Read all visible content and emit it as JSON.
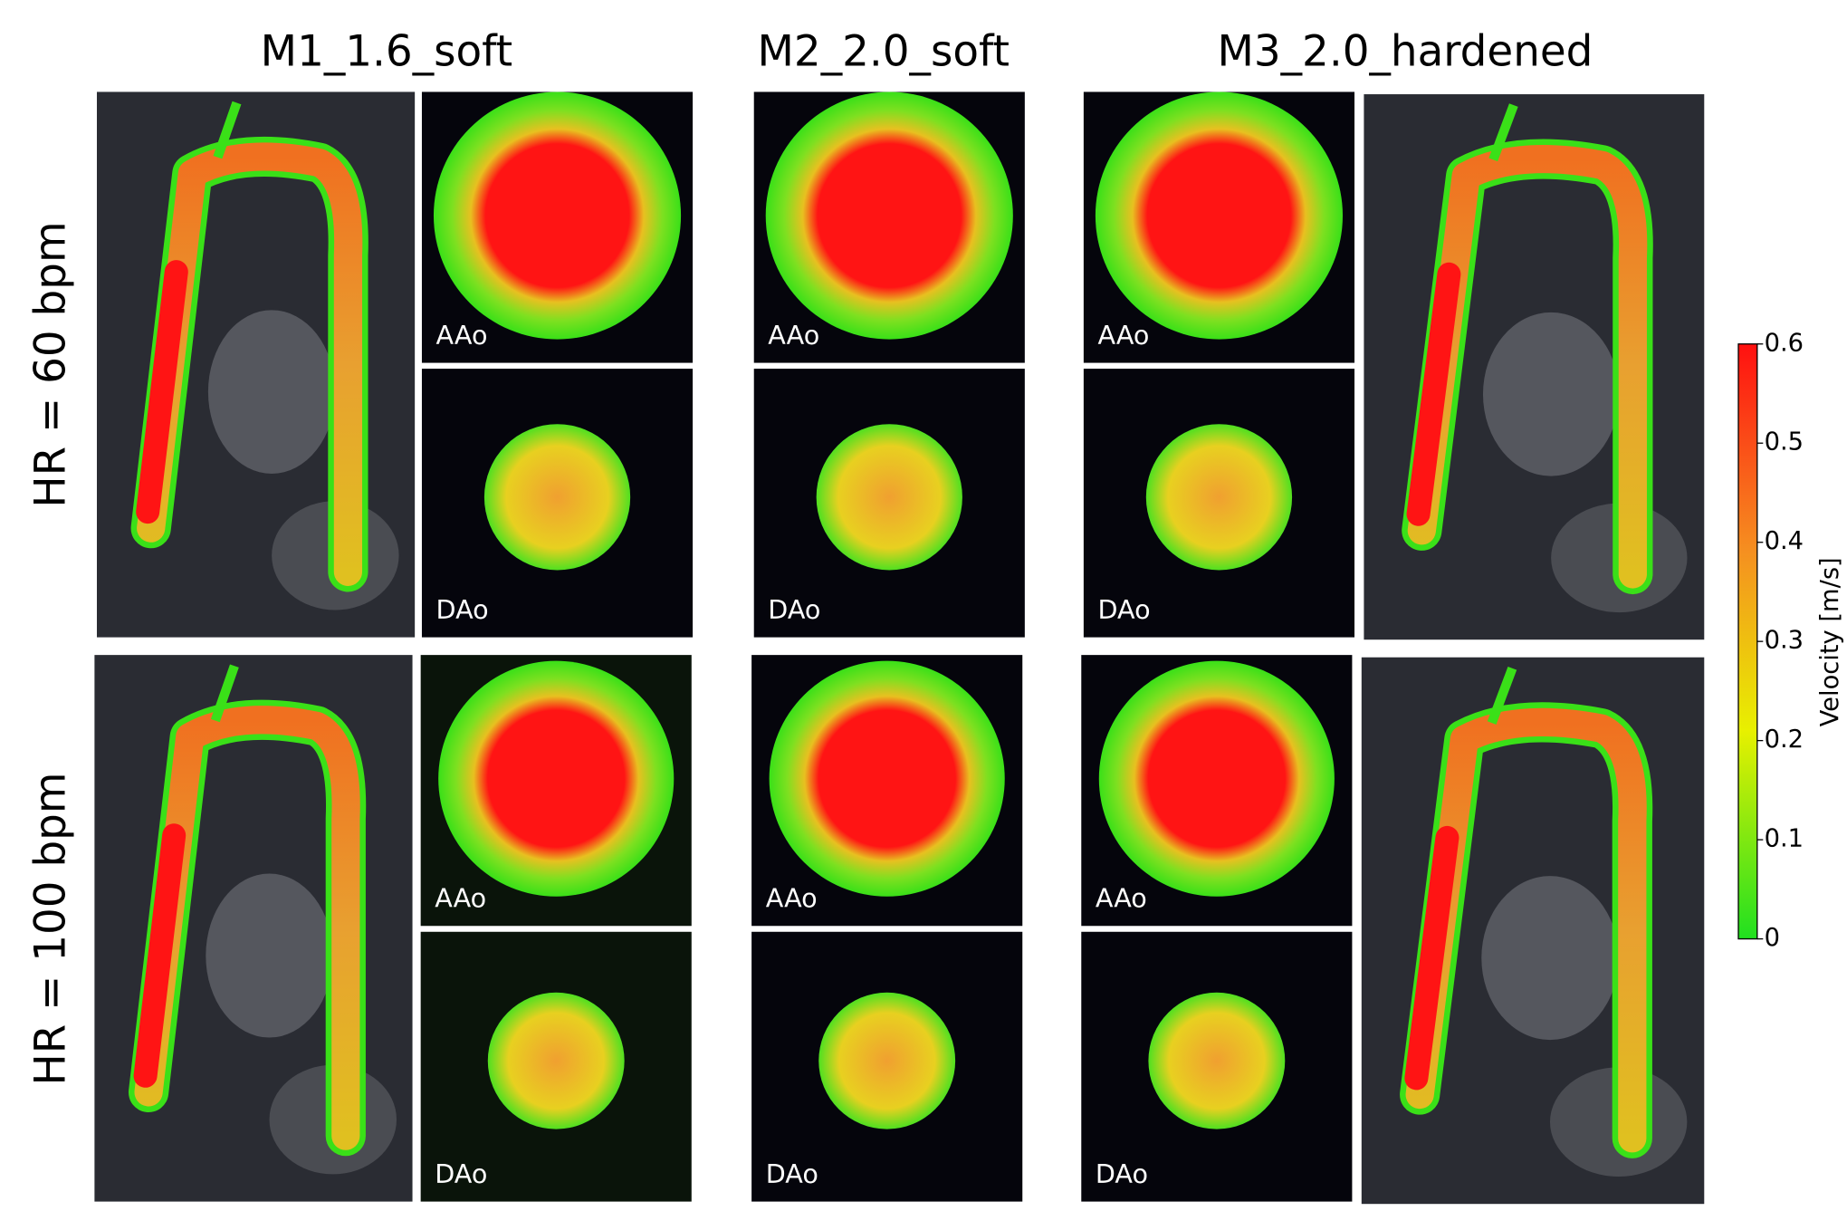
{
  "columns": [
    "M1_1.6_soft",
    "M2_2.0_soft",
    "M3_2.0_hardened"
  ],
  "rows": [
    {
      "label": "HR = 60 bpm",
      "slices": [
        [
          "AAo",
          "DAo"
        ],
        [
          "AAo",
          "DAo"
        ],
        [
          "AAo",
          "DAo"
        ]
      ]
    },
    {
      "label": "HR = 100 bpm",
      "slices": [
        [
          "AAo",
          "DAo"
        ],
        [
          "AAo",
          "DAo"
        ],
        [
          "AAo",
          "DAo"
        ]
      ]
    }
  ],
  "colorbar": {
    "label": "Velocity [m/s]",
    "lim": [
      0,
      0.6
    ],
    "ticks": [
      0,
      0.1,
      0.2,
      0.3,
      0.4,
      0.5,
      0.6
    ]
  }
}
